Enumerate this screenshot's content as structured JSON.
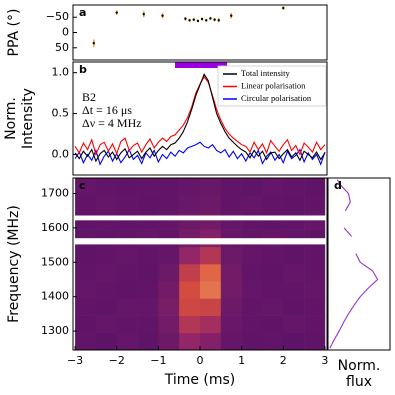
{
  "chart_data": [
    {
      "type": "scatter",
      "label": "a",
      "ylabel": "PPA (°)",
      "x": [
        -2.55,
        -2.0,
        -1.35,
        -0.9,
        -0.35,
        -0.25,
        -0.15,
        -0.05,
        0.05,
        0.15,
        0.25,
        0.35,
        0.45,
        0.75,
        2.0
      ],
      "values": [
        35,
        -65,
        -60,
        -55,
        -45,
        -40,
        -42,
        -38,
        -44,
        -40,
        -46,
        -42,
        -40,
        -55,
        -80
      ],
      "errors": [
        12,
        8,
        10,
        9,
        6,
        5,
        5,
        4,
        5,
        5,
        5,
        6,
        7,
        9,
        6
      ],
      "color": "#000000",
      "error_color": "#f0a030",
      "xlim": [
        -3.05,
        3.05
      ],
      "ylim": [
        90,
        -90
      ],
      "yticks": [
        {
          "value": -50,
          "label": "−50"
        },
        0,
        50
      ]
    },
    {
      "type": "line",
      "label": "b",
      "ylabel": [
        "Norm.",
        "Intensity"
      ],
      "annotations": [
        "B2",
        "Δt = 16 μs",
        "Δν = 4 MHz"
      ],
      "x": [
        -3.0,
        -2.9,
        -2.8,
        -2.7,
        -2.6,
        -2.5,
        -2.4,
        -2.3,
        -2.2,
        -2.1,
        -2.0,
        -1.9,
        -1.8,
        -1.7,
        -1.6,
        -1.5,
        -1.4,
        -1.3,
        -1.2,
        -1.1,
        -1.0,
        -0.9,
        -0.8,
        -0.7,
        -0.6,
        -0.5,
        -0.4,
        -0.3,
        -0.2,
        -0.1,
        0.0,
        0.1,
        0.2,
        0.3,
        0.4,
        0.5,
        0.6,
        0.7,
        0.8,
        0.9,
        1.0,
        1.1,
        1.2,
        1.3,
        1.4,
        1.5,
        1.6,
        1.7,
        1.8,
        1.9,
        2.0,
        2.1,
        2.2,
        2.3,
        2.4,
        2.5,
        2.6,
        2.7,
        2.8,
        2.9,
        3.0
      ],
      "series": [
        {
          "name": "Total intensity",
          "color": "#000000",
          "values": [
            0.02,
            -0.05,
            0.04,
            -0.02,
            0.06,
            -0.08,
            0.01,
            0.05,
            -0.03,
            0.03,
            -0.06,
            0.02,
            0.07,
            -0.04,
            0.0,
            0.04,
            -0.05,
            0.03,
            0.08,
            -0.02,
            0.05,
            0.1,
            0.06,
            0.12,
            0.14,
            0.2,
            0.28,
            0.4,
            0.55,
            0.72,
            0.85,
            0.98,
            0.9,
            0.7,
            0.5,
            0.38,
            0.28,
            0.2,
            0.15,
            0.1,
            0.06,
            0.03,
            -0.04,
            0.05,
            -0.02,
            0.04,
            -0.06,
            0.02,
            0.03,
            -0.05,
            0.01,
            0.06,
            -0.03,
            0.02,
            -0.07,
            0.04,
            0.0,
            -0.04,
            0.03,
            -0.06,
            0.02
          ]
        },
        {
          "name": "Linear polarisation",
          "color": "#ff0000",
          "values": [
            0.1,
            0.02,
            0.14,
            0.06,
            0.18,
            0.0,
            0.12,
            0.15,
            0.04,
            0.13,
            0.01,
            0.16,
            0.2,
            0.05,
            0.11,
            0.14,
            0.03,
            0.12,
            0.19,
            0.08,
            0.15,
            0.2,
            0.16,
            0.22,
            0.24,
            0.3,
            0.36,
            0.45,
            0.58,
            0.75,
            0.86,
            0.95,
            0.88,
            0.72,
            0.55,
            0.42,
            0.32,
            0.25,
            0.2,
            0.16,
            0.12,
            0.1,
            0.03,
            0.15,
            0.06,
            0.13,
            0.02,
            0.17,
            0.1,
            0.04,
            0.12,
            0.18,
            0.05,
            0.11,
            0.0,
            0.14,
            0.09,
            0.03,
            0.15,
            0.06,
            0.12
          ]
        },
        {
          "name": "Circular polarisation",
          "color": "#0000ff",
          "values": [
            -0.05,
            0.03,
            -0.1,
            0.0,
            -0.07,
            0.05,
            -0.12,
            -0.02,
            0.04,
            -0.08,
            0.01,
            -0.1,
            -0.03,
            0.06,
            -0.06,
            -0.01,
            -0.11,
            0.02,
            -0.04,
            0.05,
            -0.09,
            0.0,
            -0.05,
            0.03,
            -0.02,
            0.05,
            0.02,
            0.08,
            0.1,
            0.12,
            0.15,
            0.1,
            0.08,
            0.12,
            0.05,
            0.02,
            0.06,
            -0.03,
            0.04,
            -0.05,
            0.01,
            -0.08,
            0.02,
            -0.04,
            0.05,
            -0.11,
            -0.02,
            0.03,
            -0.07,
            0.0,
            -0.1,
            0.04,
            -0.05,
            -0.01,
            0.06,
            -0.09,
            0.02,
            -0.06,
            0.0,
            -0.12,
            0.03
          ]
        }
      ],
      "highlight": {
        "range": [
          -0.6,
          0.65
        ],
        "color": "#9b00e0"
      },
      "legend": "upper right",
      "xlim": [
        -3.05,
        3.05
      ],
      "ylim": [
        -0.25,
        1.13
      ],
      "yticks": [
        {
          "value": 0,
          "label": "0.0"
        },
        {
          "value": 0.5,
          "label": "0.5"
        },
        {
          "value": 1,
          "label": "1.0"
        }
      ]
    },
    {
      "type": "heatmap",
      "label": "c",
      "ylabel": "Frequency (MHz)",
      "xlabel": "Time (ms)",
      "x_edges": [
        -3,
        -2.5,
        -2,
        -1.5,
        -1,
        -0.5,
        0,
        0.5,
        1,
        1.5,
        2,
        2.5,
        3
      ],
      "y_edges": [
        1245,
        1295,
        1345,
        1395,
        1445,
        1495,
        1545,
        1595,
        1645,
        1695,
        1745
      ],
      "values": [
        [
          0.35,
          0.33,
          0.36,
          0.34,
          0.38,
          0.5,
          0.45,
          0.36,
          0.34,
          0.35,
          0.33,
          0.34
        ],
        [
          0.34,
          0.36,
          0.35,
          0.35,
          0.4,
          0.6,
          0.55,
          0.37,
          0.35,
          0.34,
          0.36,
          0.35
        ],
        [
          0.35,
          0.34,
          0.36,
          0.36,
          0.42,
          0.7,
          0.68,
          0.38,
          0.35,
          0.36,
          0.34,
          0.35
        ],
        [
          0.36,
          0.35,
          0.34,
          0.35,
          0.4,
          0.72,
          0.8,
          0.4,
          0.36,
          0.35,
          0.35,
          0.36
        ],
        [
          0.35,
          0.36,
          0.35,
          0.34,
          0.38,
          0.65,
          0.78,
          0.4,
          0.35,
          0.34,
          0.36,
          0.35
        ],
        [
          0.34,
          0.35,
          0.36,
          0.35,
          0.36,
          0.5,
          0.6,
          0.38,
          0.36,
          0.35,
          0.34,
          0.35
        ],
        [
          0.35,
          0.34,
          0.35,
          0.36,
          0.35,
          0.4,
          0.45,
          0.36,
          0.35,
          0.36,
          0.35,
          0.34
        ],
        [
          0.34,
          0.35,
          0.34,
          0.35,
          0.36,
          0.38,
          0.4,
          0.36,
          0.35,
          0.34,
          0.35,
          0.36
        ],
        [
          0.35,
          0.36,
          0.35,
          0.34,
          0.35,
          0.37,
          0.38,
          0.35,
          0.36,
          0.35,
          0.34,
          0.35
        ],
        [
          0.36,
          0.35,
          0.34,
          0.35,
          0.35,
          0.36,
          0.37,
          0.35,
          0.34,
          0.36,
          0.35,
          0.34
        ]
      ],
      "zlim": [
        0,
        1
      ],
      "colormap": "inferno",
      "masked": [
        [
          1552,
          1570
        ],
        [
          1622,
          1636
        ]
      ],
      "xlim": [
        -3.05,
        3.05
      ],
      "ylim": [
        1245,
        1745
      ],
      "xticks": [
        {
          "value": -3,
          "label": "−3"
        },
        {
          "value": -2,
          "label": "−2"
        },
        {
          "value": -1,
          "label": "−1"
        },
        0,
        1,
        2,
        3
      ],
      "yticks": [
        1300,
        1400,
        1500,
        1600,
        1700
      ]
    },
    {
      "type": "line",
      "label": "d",
      "xlabel": [
        "Norm.",
        "flux"
      ],
      "orientation": "horizontal",
      "y": [
        1250,
        1275,
        1300,
        1325,
        1350,
        1375,
        1400,
        1425,
        1450,
        1475,
        1500,
        1525,
        1560,
        1575,
        1600,
        1630,
        1650,
        1675,
        1700,
        1725,
        1740
      ],
      "values": [
        0.03,
        0.1,
        0.18,
        0.25,
        0.33,
        0.42,
        0.52,
        0.65,
        0.8,
        0.72,
        0.52,
        0.45,
        null,
        0.38,
        0.26,
        null,
        0.28,
        0.36,
        0.33,
        0.2,
        0.15
      ],
      "color": "#9b30d0",
      "xlim": [
        0,
        1
      ],
      "ylim": [
        1245,
        1745
      ]
    }
  ]
}
